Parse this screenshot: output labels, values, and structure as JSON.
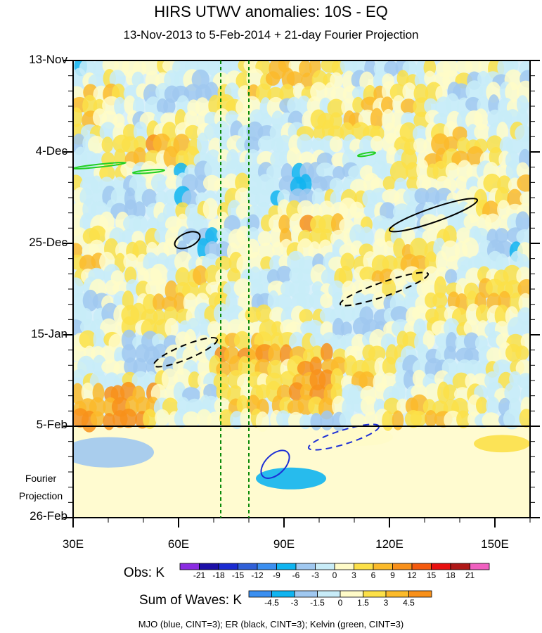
{
  "chart_data": {
    "type": "heatmap",
    "title": "HIRS UTWV anomalies: 10S - EQ",
    "subtitle": "13-Nov-2013 to 5-Feb-2014 + 21-day Fourier Projection",
    "x_axis": {
      "range": [
        30,
        160
      ],
      "tick_labels": [
        "30E",
        "60E",
        "90E",
        "120E",
        "150E"
      ],
      "tick_values": [
        30,
        60,
        90,
        120,
        150
      ]
    },
    "y_axis": {
      "tick_labels": [
        "13-Nov",
        "4-Dec",
        "25-Dec",
        "15-Jan",
        "5-Feb",
        "26-Feb"
      ],
      "tick_days": [
        0,
        21,
        42,
        63,
        84,
        105
      ],
      "range_days": [
        0,
        105
      ],
      "inverted": true
    },
    "projection_label": [
      "Fourier",
      "Projection"
    ],
    "projection_start_day": 84,
    "reference_lines": [
      72,
      80
    ],
    "obs_colorbar": {
      "label": "Obs: K",
      "levels": [
        "-21",
        "-18",
        "-15",
        "-12",
        "-9",
        "-6",
        "-3",
        "0",
        "3",
        "6",
        "9",
        "12",
        "15",
        "18",
        "21"
      ],
      "colors": [
        "#8a2be2",
        "#1c10a8",
        "#1a2bd1",
        "#3060d8",
        "#3b8ff0",
        "#10b4f0",
        "#a0c8f0",
        "#c8ecf8",
        "#fffbc8",
        "#fce048",
        "#fbba2a",
        "#f8901a",
        "#f45a0e",
        "#e81010",
        "#b01818",
        "#f060c0"
      ]
    },
    "wave_colorbar": {
      "label": "Sum of Waves: K",
      "levels": [
        "-4.5",
        "-3",
        "-1.5",
        "0",
        "1.5",
        "3",
        "4.5"
      ],
      "colors": [
        "#3b8ff0",
        "#10b4f0",
        "#a0c8f0",
        "#c8ecf8",
        "#fffbc8",
        "#fce048",
        "#fbba2a",
        "#f8901a"
      ]
    },
    "legend": "MJO (blue, CINT=3); ER (black, CINT=3); Kelvin (green, CINT=3)",
    "contours": {
      "mjo": [
        {
          "lon": [
            84,
            91
          ],
          "day": [
            90,
            95.5
          ],
          "style": "solid"
        },
        {
          "lon": [
            97,
            117
          ],
          "day": [
            84,
            89
          ],
          "style": "dashed"
        }
      ],
      "er": [
        {
          "lon": [
            120,
            145
          ],
          "day": [
            32,
            39
          ],
          "style": "solid"
        },
        {
          "lon": [
            59,
            66
          ],
          "day": [
            40,
            42.5
          ],
          "style": "solid"
        },
        {
          "lon": [
            106,
            131
          ],
          "day": [
            49,
            56
          ],
          "style": "dashed"
        },
        {
          "lon": [
            53,
            71
          ],
          "day": [
            64,
            70
          ],
          "style": "dashed"
        }
      ],
      "kelvin": [
        {
          "lon": [
            30,
            45
          ],
          "day": [
            23.5,
            24.8
          ],
          "style": "solid"
        },
        {
          "lon": [
            47,
            56
          ],
          "day": [
            25.2,
            25.8
          ],
          "style": "solid"
        },
        {
          "lon": [
            111,
            116
          ],
          "day": [
            21.2,
            21.9
          ],
          "style": "solid"
        }
      ]
    }
  }
}
